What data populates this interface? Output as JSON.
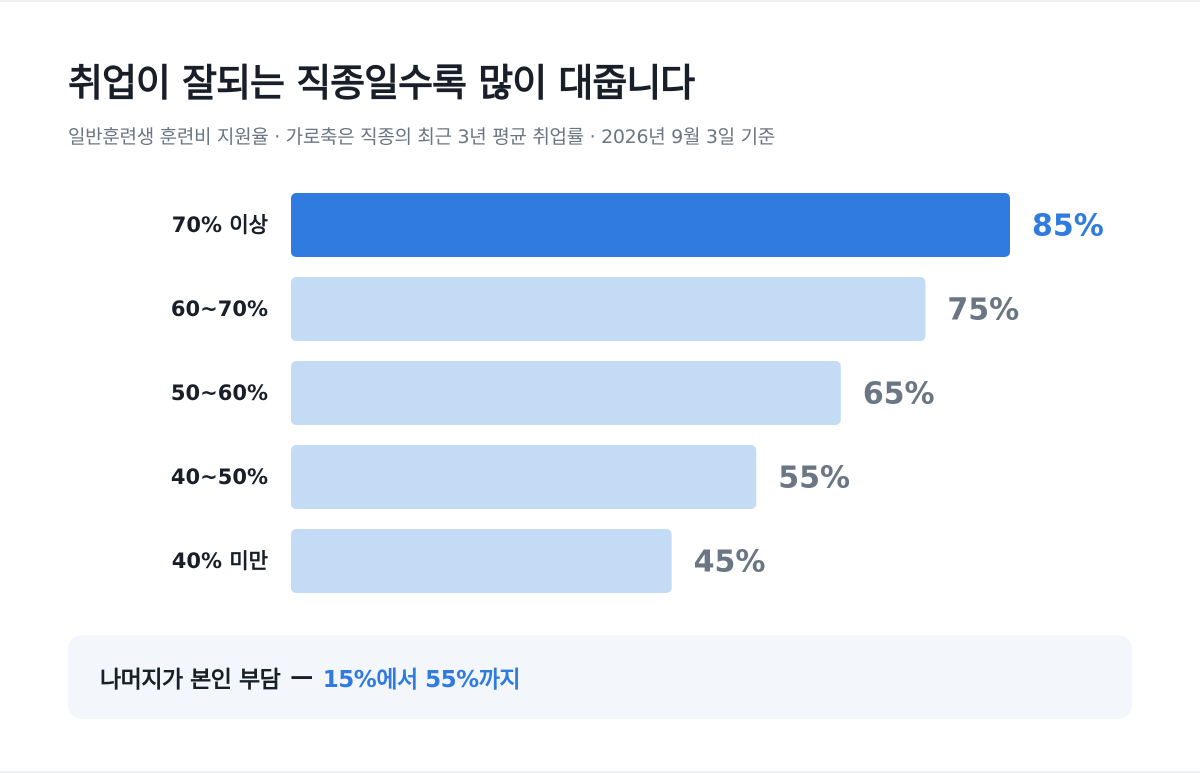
{
  "title": "취업이 잘되는 직종일수록 많이 대줍니다",
  "subtitle": "일반훈련생 훈련비 지원율 · 가로축은 직종의 최근 3년 평균 취업률 · 2026년 9월 3일 기준",
  "colors": {
    "highlight_bar": "#2f7be0",
    "default_bar": "#c4dbf5",
    "highlight_value": "#2f7be0",
    "default_value": "#6b7684",
    "note_background": "#f3f6fa"
  },
  "chart_data": {
    "type": "bar",
    "orientation": "horizontal",
    "categories": [
      "70% 이상",
      "60~70%",
      "50~60%",
      "40~50%",
      "40% 미만"
    ],
    "values": [
      85,
      75,
      65,
      55,
      45
    ],
    "value_labels": [
      "85%",
      "75%",
      "65%",
      "55%",
      "45%"
    ],
    "highlight_index": 0,
    "xlim": [
      0,
      85
    ],
    "grid": false,
    "legend": "none"
  },
  "note": {
    "main": "나머지가 본인 부담",
    "separator": "—",
    "accent": "15%에서 55%까지"
  }
}
